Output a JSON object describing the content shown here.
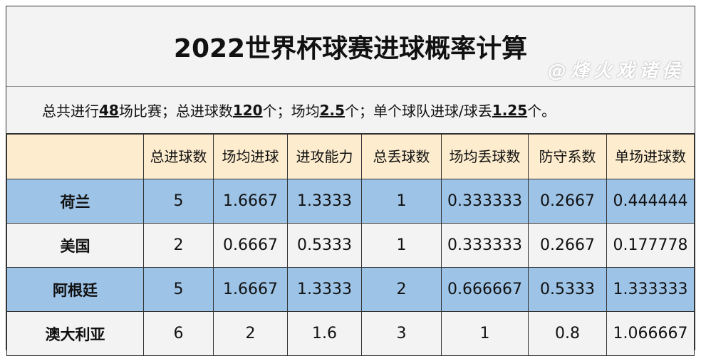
{
  "title": "2022世界杯球赛进球概率计算",
  "summary": {
    "p1": "总共进行",
    "matches": "48",
    "p2": "场比赛；总进球数",
    "goals": "120",
    "p3": "个；场均",
    "avg": "2.5",
    "p4": "个；单个球队进球/球丢",
    "team_avg": "1.25",
    "p5": "个。"
  },
  "columns": [
    "",
    "总进球数",
    "场均进球",
    "进攻能力",
    "总丢球数",
    "场均丢球数",
    "防守系数",
    "单场进球数"
  ],
  "rows": [
    {
      "team": "荷兰",
      "cells": [
        "5",
        "1.6667",
        "1.3333",
        "1",
        "0.333333",
        "0.2667",
        "0.444444"
      ]
    },
    {
      "team": "美国",
      "cells": [
        "2",
        "0.6667",
        "0.5333",
        "1",
        "0.333333",
        "0.2667",
        "0.177778"
      ]
    },
    {
      "team": "阿根廷",
      "cells": [
        "5",
        "1.6667",
        "1.3333",
        "2",
        "0.666667",
        "0.5333",
        "1.333333"
      ]
    },
    {
      "team": "澳大利亚",
      "cells": [
        "6",
        "2",
        "1.6",
        "3",
        "1",
        "0.8",
        "1.066667"
      ]
    }
  ],
  "watermark": "@烽火戏诸侯",
  "colors": {
    "header": "#fdeccd",
    "blue_row": "#9dc3e6",
    "gray_row": "#f3f3f3"
  }
}
